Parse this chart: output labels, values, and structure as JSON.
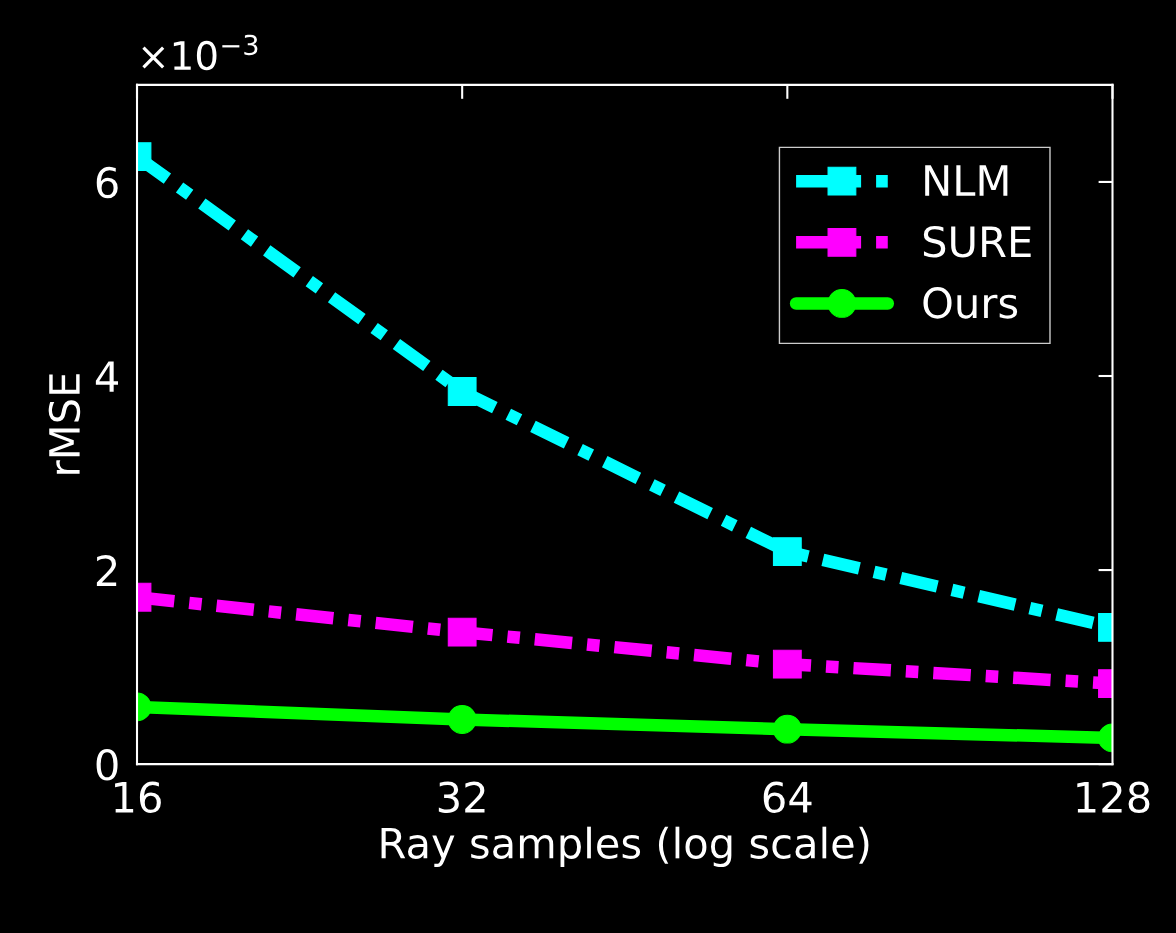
{
  "chart_data": {
    "type": "line",
    "xlabel": "Ray samples (log scale)",
    "ylabel": "rMSE",
    "log": "x",
    "x": [
      16,
      32,
      64,
      128
    ],
    "series": [
      {
        "name": "NLM",
        "color": "#00ffff",
        "values": [
          6.26,
          3.84,
          2.19,
          1.41
        ],
        "marker": "square",
        "line_style": "dashdot"
      },
      {
        "name": "SURE",
        "color": "#ff00ff",
        "values": [
          1.72,
          1.36,
          1.03,
          0.83
        ],
        "marker": "square",
        "line_style": "dashdot"
      },
      {
        "name": "Ours",
        "color": "#00ff00",
        "values": [
          0.59,
          0.46,
          0.36,
          0.27
        ],
        "marker": "circle",
        "line_style": "solid"
      }
    ],
    "xlim": [
      16,
      128
    ],
    "xticks": [
      16,
      32,
      64,
      128
    ],
    "ylim": [
      0,
      7
    ],
    "yticks": [
      0,
      2,
      4,
      6
    ],
    "annotations": [
      "×10$^{−3}$"
    ],
    "grid": false,
    "legend": "top right"
  }
}
